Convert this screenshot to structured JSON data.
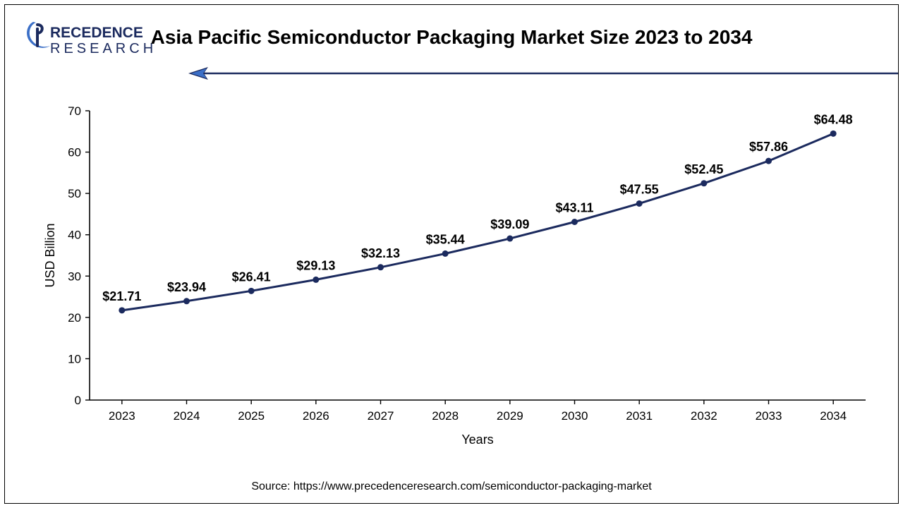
{
  "title": "Asia Pacific Semiconductor Packaging Market Size 2023 to 2034",
  "logo": {
    "top_text": "RECEDENCE",
    "bottom_text": "RESEARCH",
    "primary_color": "#1b2a5e",
    "accent_color": "#3b6fc7"
  },
  "source": "Source: https://www.precedenceresearch.com/semiconductor-packaging-market",
  "chart": {
    "type": "line",
    "years": [
      "2023",
      "2024",
      "2025",
      "2026",
      "2027",
      "2028",
      "2029",
      "2030",
      "2031",
      "2032",
      "2033",
      "2034"
    ],
    "values": [
      21.71,
      23.94,
      26.41,
      29.13,
      32.13,
      35.44,
      39.09,
      43.11,
      47.55,
      52.45,
      57.86,
      64.48
    ],
    "value_labels": [
      "$21.71",
      "$23.94",
      "$26.41",
      "$29.13",
      "$32.13",
      "$35.44",
      "$39.09",
      "$43.11",
      "$47.55",
      "$52.45",
      "$57.86",
      "$64.48"
    ],
    "ylim": [
      0,
      70
    ],
    "ytick_step": 10,
    "ylabel": "USD Billion",
    "xlabel": "Years",
    "line_color": "#1b2a5e",
    "line_width": 3,
    "marker_radius": 4.5,
    "marker_color": "#1b2a5e",
    "axis_color": "#000000",
    "axis_width": 1.6,
    "tick_color": "#000000",
    "tick_font_size": 17,
    "axis_label_font_size": 18,
    "data_label_font_size": 18,
    "data_label_font_weight": "700",
    "background_color": "#ffffff",
    "title_fontsize": 28,
    "arrow_color": "#1b2a5e",
    "arrow_accent": "#3b6fc7"
  }
}
